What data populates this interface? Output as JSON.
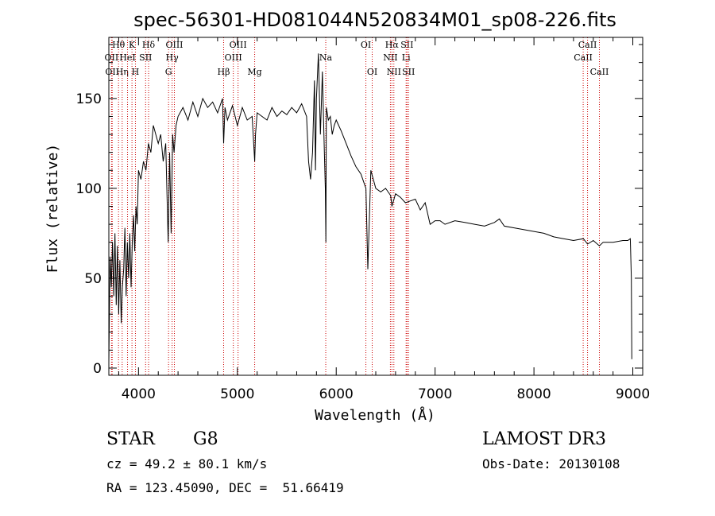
{
  "chart_data": {
    "type": "line",
    "title": "spec-56301-HD081044N520834M01_sp08-226.fits",
    "xlabel": "Wavelength (Å)",
    "ylabel": "Flux (relative)",
    "xlim": [
      3700,
      9100
    ],
    "ylim": [
      -4,
      184
    ],
    "xticks": [
      4000,
      5000,
      6000,
      7000,
      8000,
      9000
    ],
    "yticks": [
      0,
      50,
      100,
      150
    ],
    "grid": false,
    "series": [
      {
        "x": [
          3700,
          3712,
          3725,
          3737,
          3750,
          3762,
          3775,
          3787,
          3800,
          3812,
          3825,
          3837,
          3850,
          3862,
          3875,
          3887,
          3900,
          3912,
          3925,
          3937,
          3950,
          3962,
          3975,
          3987,
          4000,
          4025,
          4050,
          4075,
          4100,
          4125,
          4150,
          4175,
          4200,
          4225,
          4250,
          4275,
          4300,
          4315,
          4330,
          4345,
          4360,
          4380,
          4400,
          4450,
          4500,
          4550,
          4600,
          4650,
          4700,
          4750,
          4800,
          4850,
          4861,
          4875,
          4900,
          4950,
          5000,
          5050,
          5100,
          5150,
          5175,
          5183,
          5200,
          5250,
          5300,
          5350,
          5400,
          5450,
          5500,
          5550,
          5600,
          5650,
          5700,
          5720,
          5740,
          5760,
          5780,
          5790,
          5800,
          5820,
          5840,
          5860,
          5880,
          5890,
          5895,
          5900,
          5920,
          5940,
          5960,
          5980,
          6000,
          6050,
          6100,
          6150,
          6200,
          6250,
          6300,
          6320,
          6350,
          6400,
          6450,
          6500,
          6550,
          6563,
          6600,
          6650,
          6700,
          6750,
          6800,
          6850,
          6900,
          6950,
          7000,
          7050,
          7100,
          7200,
          7300,
          7400,
          7500,
          7600,
          7650,
          7700,
          7800,
          7900,
          8000,
          8100,
          8200,
          8300,
          8400,
          8500,
          8542,
          8600,
          8662,
          8700,
          8800,
          8900,
          8950,
          8975,
          8985,
          8990
        ],
        "y": [
          3,
          62,
          45,
          70,
          40,
          75,
          35,
          68,
          30,
          60,
          25,
          45,
          55,
          78,
          40,
          70,
          50,
          75,
          45,
          70,
          85,
          65,
          90,
          80,
          110,
          105,
          115,
          110,
          125,
          120,
          135,
          130,
          125,
          130,
          115,
          125,
          70,
          120,
          75,
          130,
          120,
          135,
          140,
          145,
          138,
          148,
          140,
          150,
          145,
          148,
          142,
          150,
          125,
          145,
          138,
          146,
          135,
          145,
          138,
          140,
          115,
          130,
          142,
          140,
          138,
          145,
          140,
          143,
          141,
          145,
          142,
          147,
          140,
          115,
          105,
          120,
          160,
          110,
          150,
          175,
          130,
          165,
          120,
          100,
          70,
          145,
          138,
          140,
          130,
          135,
          138,
          132,
          125,
          118,
          112,
          108,
          100,
          55,
          110,
          100,
          98,
          100,
          96,
          90,
          97,
          95,
          92,
          93,
          94,
          88,
          92,
          80,
          82,
          82,
          80,
          82,
          81,
          80,
          79,
          81,
          83,
          79,
          78,
          77,
          76,
          75,
          73,
          72,
          71,
          72,
          69,
          71,
          68,
          70,
          70,
          71,
          71,
          72,
          50,
          5
        ]
      }
    ],
    "line_markers": [
      {
        "x": 3727,
        "label": "OII",
        "row": 2
      },
      {
        "x": 3734,
        "label": "OII",
        "row": 3
      },
      {
        "x": 3798,
        "label": "Hθ",
        "row": 1
      },
      {
        "x": 3835,
        "label": "Hη",
        "row": 3
      },
      {
        "x": 3889,
        "label": "HeI",
        "row": 2
      },
      {
        "x": 3934,
        "label": "K",
        "row": 1
      },
      {
        "x": 3969,
        "label": "H",
        "row": 3
      },
      {
        "x": 4072,
        "label": "SII",
        "row": 2
      },
      {
        "x": 4102,
        "label": "Hδ",
        "row": 1
      },
      {
        "x": 4304,
        "label": "G",
        "row": 3
      },
      {
        "x": 4340,
        "label": "Hγ",
        "row": 2
      },
      {
        "x": 4363,
        "label": "OIII",
        "row": 1
      },
      {
        "x": 4861,
        "label": "Hβ",
        "row": 3
      },
      {
        "x": 4959,
        "label": "OIII",
        "row": 2
      },
      {
        "x": 5007,
        "label": "OIII",
        "row": 1
      },
      {
        "x": 5175,
        "label": "Mg",
        "row": 3
      },
      {
        "x": 5894,
        "label": "Na",
        "row": 2
      },
      {
        "x": 6300,
        "label": "OI",
        "row": 1
      },
      {
        "x": 6364,
        "label": "OI",
        "row": 3
      },
      {
        "x": 6548,
        "label": "NII",
        "row": 2
      },
      {
        "x": 6563,
        "label": "Hα",
        "row": 1
      },
      {
        "x": 6583,
        "label": "NII",
        "row": 3
      },
      {
        "x": 6707,
        "label": "Li",
        "row": 2
      },
      {
        "x": 6716,
        "label": "SII",
        "row": 1
      },
      {
        "x": 6731,
        "label": "SII",
        "row": 3
      },
      {
        "x": 8498,
        "label": "CaII",
        "row": 2
      },
      {
        "x": 8542,
        "label": "CaII",
        "row": 1
      },
      {
        "x": 8662,
        "label": "CaII",
        "row": 3
      }
    ],
    "colors": {
      "spectrum": "#000000",
      "markers": "#cc0000",
      "marker_labels": "#000000"
    }
  },
  "info": {
    "class_label": "STAR",
    "subclass": "G8",
    "survey": "LAMOST DR3",
    "velocity": "cz = 49.2 ± 80.1 km/s",
    "obs_date": "Obs-Date: 20130108",
    "coords": "RA = 123.45090, DEC =  51.66419"
  }
}
